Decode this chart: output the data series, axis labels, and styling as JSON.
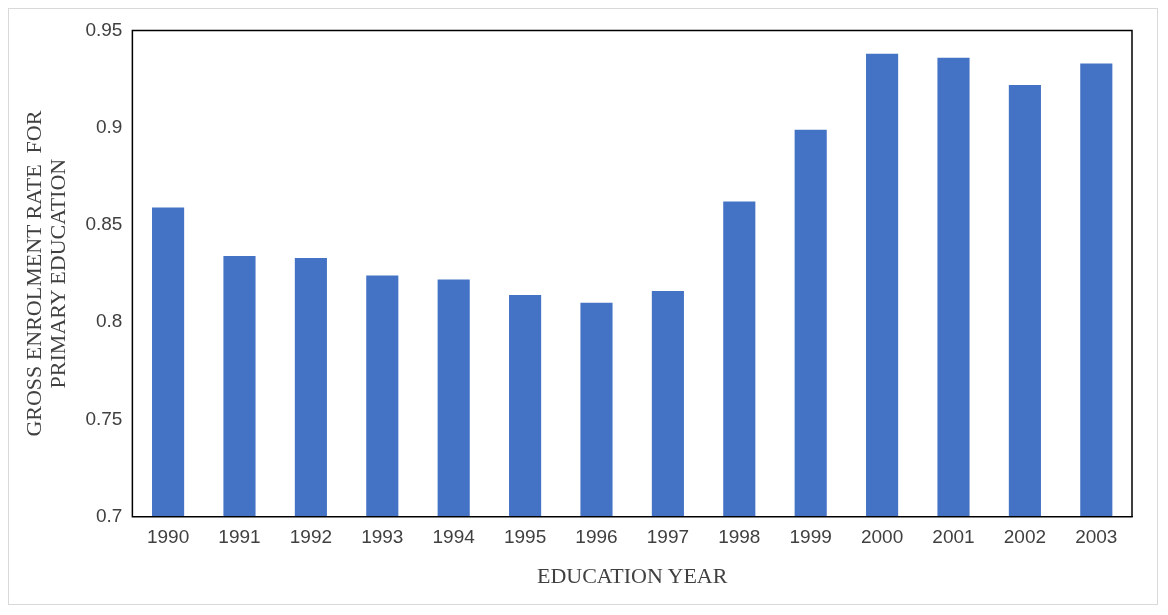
{
  "chart_data": {
    "type": "bar",
    "xlabel": "EDUCATION YEAR",
    "ylabel": "GROSS ENROLMENT RATE  FOR\nPRIMARY EDUCATION",
    "categories": [
      "1990",
      "1991",
      "1992",
      "1993",
      "1994",
      "1995",
      "1996",
      "1997",
      "1998",
      "1999",
      "2000",
      "2001",
      "2002",
      "2003"
    ],
    "values": [
      0.859,
      0.834,
      0.833,
      0.824,
      0.822,
      0.814,
      0.81,
      0.816,
      0.862,
      0.899,
      0.938,
      0.936,
      0.922,
      0.933
    ],
    "color": "#4472c4",
    "ylim": [
      0.7,
      0.95
    ],
    "yticks": [
      {
        "value": 0.7,
        "label": "0.7"
      },
      {
        "value": 0.75,
        "label": "0.75"
      },
      {
        "value": 0.8,
        "label": "0.8"
      },
      {
        "value": 0.85,
        "label": "0.85"
      },
      {
        "value": 0.9,
        "label": "0.9"
      },
      {
        "value": 0.95,
        "label": "0.95"
      }
    ],
    "grid": false,
    "legend": false
  }
}
